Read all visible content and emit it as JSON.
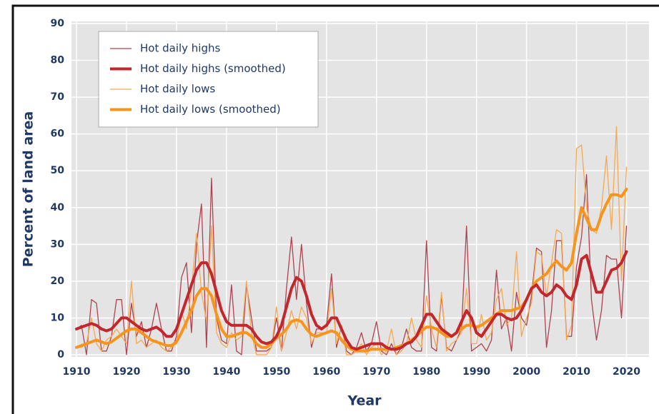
{
  "chart_data": {
    "type": "line",
    "x_label": "Year",
    "y_label": "Percent of land area",
    "x": [
      1910,
      1911,
      1912,
      1913,
      1914,
      1915,
      1916,
      1917,
      1918,
      1919,
      1920,
      1921,
      1922,
      1923,
      1924,
      1925,
      1926,
      1927,
      1928,
      1929,
      1930,
      1931,
      1932,
      1933,
      1934,
      1935,
      1936,
      1937,
      1938,
      1939,
      1940,
      1941,
      1942,
      1943,
      1944,
      1945,
      1946,
      1947,
      1948,
      1949,
      1950,
      1951,
      1952,
      1953,
      1954,
      1955,
      1956,
      1957,
      1958,
      1959,
      1960,
      1961,
      1962,
      1963,
      1964,
      1965,
      1966,
      1967,
      1968,
      1969,
      1970,
      1971,
      1972,
      1973,
      1974,
      1975,
      1976,
      1977,
      1978,
      1979,
      1980,
      1981,
      1982,
      1983,
      1984,
      1985,
      1986,
      1987,
      1988,
      1989,
      1990,
      1991,
      1992,
      1993,
      1994,
      1995,
      1996,
      1997,
      1998,
      1999,
      2000,
      2001,
      2002,
      2003,
      2004,
      2005,
      2006,
      2007,
      2008,
      2009,
      2010,
      2011,
      2012,
      2013,
      2014,
      2015,
      2016,
      2017,
      2018,
      2019,
      2020
    ],
    "series": [
      {
        "name": "Hot daily highs",
        "color": "#b0424f",
        "width": 1.3,
        "values": [
          7,
          8,
          0,
          15,
          14,
          1,
          1,
          5,
          15,
          15,
          0,
          14,
          5,
          9,
          2,
          7,
          14,
          7,
          1,
          1,
          5,
          21,
          25,
          6,
          30,
          41,
          2,
          48,
          10,
          4,
          3,
          19,
          1,
          0,
          19,
          10,
          1,
          1,
          1,
          2,
          10,
          1,
          18,
          32,
          15,
          30,
          14,
          2,
          7,
          7,
          8,
          22,
          2,
          8,
          1,
          0,
          2,
          6,
          1,
          3,
          9,
          1,
          0,
          3,
          0,
          2,
          7,
          2,
          1,
          1,
          31,
          2,
          1,
          16,
          2,
          1,
          4,
          7,
          35,
          1,
          2,
          3,
          1,
          4,
          23,
          7,
          10,
          1,
          17,
          10,
          8,
          16,
          29,
          28,
          2,
          12,
          31,
          31,
          5,
          5,
          24,
          32,
          49,
          15,
          4,
          12,
          27,
          26,
          26,
          10,
          35
        ]
      },
      {
        "name": "Hot daily highs (smoothed)",
        "color": "#c1272d",
        "width": 4,
        "values": [
          7,
          7.5,
          8,
          8.5,
          8,
          7,
          6.5,
          7,
          8.5,
          10,
          10,
          9,
          8,
          7,
          6.5,
          7,
          7.5,
          6.5,
          5,
          5,
          7,
          11,
          15,
          19,
          23,
          25,
          25,
          22,
          17,
          12,
          9,
          8,
          8,
          8,
          8,
          7,
          5,
          3.5,
          3,
          3.5,
          5,
          8,
          13,
          18,
          21,
          20,
          16,
          11,
          8,
          7,
          8,
          10,
          10,
          7,
          4,
          2,
          1.5,
          2,
          2.5,
          3,
          3,
          3,
          2,
          1.5,
          1.5,
          2,
          3,
          3.5,
          5,
          8,
          11,
          11,
          9,
          7,
          6,
          5,
          6,
          9,
          12,
          10,
          6,
          5,
          7,
          9,
          11,
          11,
          10,
          9.5,
          10,
          12,
          15,
          18,
          19,
          17,
          16,
          17,
          19,
          18,
          16,
          15,
          19,
          26,
          27,
          22,
          17,
          17,
          20,
          23,
          23.5,
          25,
          28
        ]
      },
      {
        "name": "Hot daily lows",
        "color": "#f5a951",
        "width": 1.3,
        "values": [
          2,
          2,
          3,
          10,
          3,
          1,
          4,
          5,
          7,
          5,
          3,
          20,
          3,
          4,
          2,
          3,
          4,
          2,
          1,
          2,
          3,
          12,
          7,
          18,
          33,
          17,
          9,
          35,
          6,
          3,
          2,
          6,
          4,
          5,
          20,
          6,
          0,
          0,
          0,
          2,
          13,
          1,
          6,
          12,
          7,
          13,
          10,
          3,
          6,
          6,
          6,
          18,
          3,
          8,
          0,
          0,
          1,
          3,
          0,
          2,
          3,
          0,
          1,
          7,
          0,
          1,
          3,
          10,
          4,
          2,
          16,
          7,
          2,
          17,
          1,
          3,
          4,
          6,
          18,
          3,
          3,
          11,
          4,
          6,
          15,
          18,
          8,
          10,
          28,
          5,
          10,
          14,
          28,
          27,
          16,
          25,
          34,
          33,
          4,
          8,
          56,
          57,
          40,
          34,
          33,
          40,
          54,
          34,
          62,
          20,
          51
        ]
      },
      {
        "name": "Hot daily lows (smoothed)",
        "color": "#f7941d",
        "width": 4,
        "values": [
          2,
          2.5,
          3,
          3.5,
          4,
          3.5,
          3,
          3.5,
          4.5,
          5.5,
          6.5,
          7,
          7,
          6,
          5,
          4,
          3.5,
          3,
          2.5,
          2.5,
          3.5,
          6,
          9,
          12,
          16,
          18,
          18,
          16,
          11,
          7,
          5,
          5,
          5.5,
          6,
          6,
          5,
          3,
          2,
          2,
          3,
          4.5,
          5.5,
          7,
          9,
          9.5,
          9,
          7,
          5.5,
          5,
          5.5,
          6,
          6.5,
          6,
          4,
          2.5,
          1.5,
          1,
          1,
          1,
          1.5,
          1.5,
          1.5,
          1.5,
          1.5,
          2,
          2.5,
          3,
          4,
          5,
          6.5,
          7.5,
          7.5,
          7,
          6,
          5,
          5,
          6,
          7,
          8,
          8,
          7.5,
          8,
          9,
          10,
          11,
          12,
          12,
          12,
          12.5,
          13,
          15,
          18,
          20,
          21,
          22,
          24,
          25.5,
          24,
          23,
          25,
          33,
          40,
          37,
          34,
          34,
          38,
          41,
          43.5,
          43.5,
          43,
          45
        ]
      }
    ],
    "xlim": [
      1909,
      2024.5
    ],
    "ylim": [
      0,
      90
    ],
    "xticks": [
      1910,
      1920,
      1930,
      1940,
      1950,
      1960,
      1970,
      1980,
      1990,
      2000,
      2010,
      2020
    ],
    "yticks": [
      0,
      10,
      20,
      30,
      40,
      50,
      60,
      70,
      80,
      90
    ],
    "grid": true,
    "legend": "top-left"
  }
}
